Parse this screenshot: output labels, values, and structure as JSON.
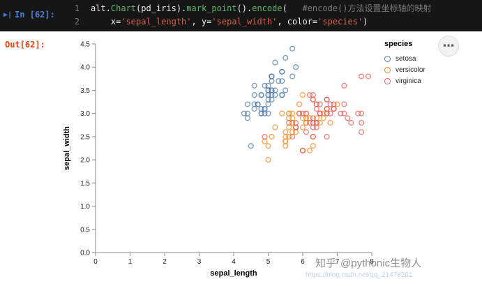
{
  "code_cell": {
    "run_icon": "▶|",
    "prompt": "In [62]:",
    "lines": [
      {
        "number": "1",
        "tokens": [
          {
            "text": "alt.",
            "color": "default"
          },
          {
            "text": "Chart",
            "color": "function"
          },
          {
            "text": "(pd_iris).",
            "color": "default"
          },
          {
            "text": "mark_point",
            "color": "function"
          },
          {
            "text": "().",
            "color": "default"
          },
          {
            "text": "encode",
            "color": "function"
          },
          {
            "text": "(",
            "color": "default"
          },
          {
            "text": "   #encode()方法设置坐标轴的映射",
            "color": "comment"
          }
        ]
      },
      {
        "number": "2",
        "tokens": [
          {
            "text": "    x=",
            "color": "default"
          },
          {
            "text": "'sepal_length'",
            "color": "string"
          },
          {
            "text": ", y=",
            "color": "default"
          },
          {
            "text": "'sepal_width'",
            "color": "string"
          },
          {
            "text": ", color=",
            "color": "default"
          },
          {
            "text": "'species'",
            "color": "string"
          },
          {
            "text": ")",
            "color": "default"
          }
        ]
      }
    ]
  },
  "output_cell": {
    "prompt": "Out[62]:"
  },
  "menu": {
    "more_icon": "⋯"
  },
  "watermark": {
    "brand": "知乎",
    "handle": "@pythonic生物人",
    "url": "https://blog.csdn.net/qq_21478261"
  },
  "chart_data": {
    "type": "scatter",
    "xlabel": "sepal_length",
    "ylabel": "sepal_width",
    "xlim": [
      0,
      8
    ],
    "ylim": [
      0,
      4.5
    ],
    "x_tick_labels": [
      "0",
      "1",
      "2",
      "3",
      "4",
      "5",
      "6",
      "7",
      "8"
    ],
    "y_tick_labels": [
      "0.0",
      "0.5",
      "1.0",
      "1.5",
      "2.0",
      "2.5",
      "3.0",
      "3.5",
      "4.0",
      "4.5"
    ],
    "grid": false,
    "legend_title": "species",
    "legend_position": "top-right",
    "point_style": "open-circle",
    "series": [
      {
        "name": "setosa",
        "color": "#4c78a8",
        "points": [
          [
            5.1,
            3.5
          ],
          [
            4.9,
            3.0
          ],
          [
            4.7,
            3.2
          ],
          [
            4.6,
            3.1
          ],
          [
            5.0,
            3.6
          ],
          [
            5.4,
            3.9
          ],
          [
            4.6,
            3.4
          ],
          [
            5.0,
            3.4
          ],
          [
            4.4,
            2.9
          ],
          [
            4.9,
            3.1
          ],
          [
            5.4,
            3.7
          ],
          [
            4.8,
            3.4
          ],
          [
            4.8,
            3.0
          ],
          [
            4.3,
            3.0
          ],
          [
            5.8,
            4.0
          ],
          [
            5.7,
            4.4
          ],
          [
            5.4,
            3.9
          ],
          [
            5.1,
            3.5
          ],
          [
            5.7,
            3.8
          ],
          [
            5.1,
            3.8
          ],
          [
            5.4,
            3.4
          ],
          [
            5.1,
            3.7
          ],
          [
            4.6,
            3.6
          ],
          [
            5.1,
            3.3
          ],
          [
            4.8,
            3.4
          ],
          [
            5.0,
            3.0
          ],
          [
            5.0,
            3.4
          ],
          [
            5.2,
            3.5
          ],
          [
            5.2,
            3.4
          ],
          [
            4.7,
            3.2
          ],
          [
            4.8,
            3.1
          ],
          [
            5.4,
            3.4
          ],
          [
            5.2,
            4.1
          ],
          [
            5.5,
            4.2
          ],
          [
            4.9,
            3.1
          ],
          [
            5.0,
            3.2
          ],
          [
            5.5,
            3.5
          ],
          [
            4.9,
            3.6
          ],
          [
            4.4,
            3.0
          ],
          [
            5.1,
            3.4
          ],
          [
            5.0,
            3.5
          ],
          [
            4.5,
            2.3
          ],
          [
            4.4,
            3.2
          ],
          [
            5.0,
            3.5
          ],
          [
            5.1,
            3.8
          ],
          [
            4.8,
            3.0
          ],
          [
            5.1,
            3.8
          ],
          [
            4.6,
            3.2
          ],
          [
            5.3,
            3.7
          ],
          [
            5.0,
            3.3
          ]
        ]
      },
      {
        "name": "versicolor",
        "color": "#f58518",
        "points": [
          [
            7.0,
            3.2
          ],
          [
            6.4,
            3.2
          ],
          [
            6.9,
            3.1
          ],
          [
            5.5,
            2.3
          ],
          [
            6.5,
            2.8
          ],
          [
            5.7,
            2.8
          ],
          [
            6.3,
            3.3
          ],
          [
            4.9,
            2.4
          ],
          [
            6.6,
            2.9
          ],
          [
            5.2,
            2.7
          ],
          [
            5.0,
            2.0
          ],
          [
            5.9,
            3.0
          ],
          [
            6.0,
            2.2
          ],
          [
            6.1,
            2.9
          ],
          [
            5.6,
            2.9
          ],
          [
            6.7,
            3.1
          ],
          [
            5.6,
            3.0
          ],
          [
            5.8,
            2.7
          ],
          [
            6.2,
            2.2
          ],
          [
            5.6,
            2.5
          ],
          [
            5.9,
            3.2
          ],
          [
            6.1,
            2.8
          ],
          [
            6.3,
            2.5
          ],
          [
            6.1,
            2.8
          ],
          [
            6.4,
            2.9
          ],
          [
            6.6,
            3.0
          ],
          [
            6.8,
            2.8
          ],
          [
            6.7,
            3.0
          ],
          [
            6.0,
            2.9
          ],
          [
            5.7,
            2.6
          ],
          [
            5.5,
            2.4
          ],
          [
            5.5,
            2.4
          ],
          [
            5.8,
            2.7
          ],
          [
            6.0,
            2.7
          ],
          [
            5.4,
            3.0
          ],
          [
            6.0,
            3.4
          ],
          [
            6.7,
            3.1
          ],
          [
            6.3,
            2.3
          ],
          [
            5.6,
            3.0
          ],
          [
            5.5,
            2.5
          ],
          [
            5.5,
            2.6
          ],
          [
            6.1,
            3.0
          ],
          [
            5.8,
            2.6
          ],
          [
            5.0,
            2.3
          ],
          [
            5.6,
            2.7
          ],
          [
            5.7,
            3.0
          ],
          [
            5.7,
            2.9
          ],
          [
            6.2,
            2.9
          ],
          [
            5.1,
            2.5
          ],
          [
            5.7,
            2.8
          ]
        ]
      },
      {
        "name": "virginica",
        "color": "#e45756",
        "points": [
          [
            6.3,
            3.3
          ],
          [
            5.8,
            2.7
          ],
          [
            7.1,
            3.0
          ],
          [
            6.3,
            2.9
          ],
          [
            6.5,
            3.0
          ],
          [
            7.6,
            3.0
          ],
          [
            4.9,
            2.5
          ],
          [
            7.3,
            2.9
          ],
          [
            6.7,
            2.5
          ],
          [
            7.2,
            3.6
          ],
          [
            6.5,
            3.2
          ],
          [
            6.4,
            2.7
          ],
          [
            6.8,
            3.0
          ],
          [
            5.7,
            2.5
          ],
          [
            5.8,
            2.8
          ],
          [
            6.4,
            3.2
          ],
          [
            6.5,
            3.0
          ],
          [
            7.7,
            3.8
          ],
          [
            7.7,
            2.6
          ],
          [
            6.0,
            2.2
          ],
          [
            6.9,
            3.2
          ],
          [
            5.6,
            2.8
          ],
          [
            7.7,
            2.8
          ],
          [
            6.3,
            2.7
          ],
          [
            6.7,
            3.3
          ],
          [
            7.2,
            3.2
          ],
          [
            6.2,
            2.8
          ],
          [
            6.1,
            3.0
          ],
          [
            6.4,
            2.8
          ],
          [
            7.2,
            3.0
          ],
          [
            7.4,
            2.8
          ],
          [
            7.9,
            3.8
          ],
          [
            6.4,
            2.8
          ],
          [
            6.3,
            2.8
          ],
          [
            6.1,
            2.6
          ],
          [
            7.7,
            3.0
          ],
          [
            6.3,
            3.4
          ],
          [
            6.4,
            3.1
          ],
          [
            6.0,
            3.0
          ],
          [
            6.9,
            3.1
          ],
          [
            6.7,
            3.1
          ],
          [
            6.9,
            3.1
          ],
          [
            5.8,
            2.7
          ],
          [
            6.8,
            3.2
          ],
          [
            6.7,
            3.3
          ],
          [
            6.7,
            3.0
          ],
          [
            6.3,
            2.5
          ],
          [
            6.5,
            3.0
          ],
          [
            6.2,
            3.4
          ],
          [
            5.9,
            3.0
          ]
        ]
      }
    ]
  }
}
